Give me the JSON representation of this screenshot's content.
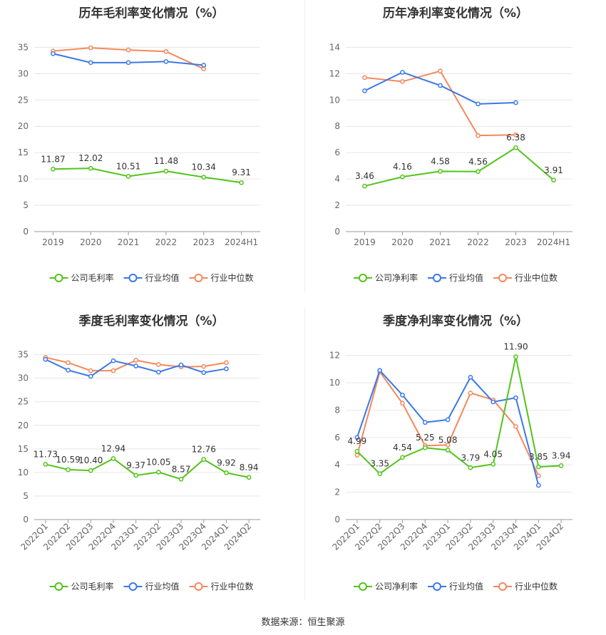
{
  "source": "数据来源：恒生聚源",
  "legend_labels": {
    "company_gross": "公司毛利率",
    "company_net": "公司净利率",
    "industry_avg": "行业均值",
    "industry_median": "行业中位数"
  },
  "colors": {
    "company": "#52c41a",
    "industry_avg": "#3b78e7",
    "industry_median": "#f4885c"
  },
  "chart_data": [
    {
      "id": "annual-gross",
      "type": "line",
      "title": "历年毛利率变化情况（%）",
      "categories": [
        "2019",
        "2020",
        "2021",
        "2022",
        "2023",
        "2024H1"
      ],
      "yticks": [
        0,
        5,
        10,
        15,
        20,
        25,
        30,
        35
      ],
      "ylim": [
        0,
        36
      ],
      "series": [
        {
          "name": "公司毛利率",
          "key": "company",
          "values": [
            11.87,
            12.02,
            10.51,
            11.48,
            10.34,
            9.31
          ],
          "labels": true
        },
        {
          "name": "行业均值",
          "key": "industry_avg",
          "values": [
            33.8,
            32.1,
            32.1,
            32.3,
            31.6,
            null
          ],
          "labels": false
        },
        {
          "name": "行业中位数",
          "key": "industry_median",
          "values": [
            34.3,
            34.9,
            34.5,
            34.2,
            30.9,
            null
          ],
          "labels": false
        }
      ],
      "legend": "bottom"
    },
    {
      "id": "annual-net",
      "type": "line",
      "title": "历年净利率变化情况（%）",
      "categories": [
        "2019",
        "2020",
        "2021",
        "2022",
        "2023",
        "2024H1"
      ],
      "yticks": [
        0,
        2,
        4,
        6,
        8,
        10,
        12,
        14
      ],
      "ylim": [
        0,
        14.4
      ],
      "series": [
        {
          "name": "公司净利率",
          "key": "company",
          "values": [
            3.46,
            4.16,
            4.58,
            4.56,
            6.38,
            3.91
          ],
          "labels": true
        },
        {
          "name": "行业均值",
          "key": "industry_avg",
          "values": [
            10.7,
            12.1,
            11.1,
            9.7,
            9.8,
            null
          ],
          "labels": false
        },
        {
          "name": "行业中位数",
          "key": "industry_median",
          "values": [
            11.7,
            11.4,
            12.2,
            7.3,
            7.35,
            null
          ],
          "labels": false
        }
      ],
      "legend": "bottom"
    },
    {
      "id": "quarterly-gross",
      "type": "line",
      "title": "季度毛利率变化情况（%）",
      "categories": [
        "2022Q1",
        "2022Q2",
        "2022Q3",
        "2022Q4",
        "2023Q1",
        "2023Q2",
        "2023Q3",
        "2023Q4",
        "2024Q1",
        "2024Q2"
      ],
      "yticks": [
        0,
        5,
        10,
        15,
        20,
        25,
        30,
        35
      ],
      "ylim": [
        0,
        36
      ],
      "rotate_labels": true,
      "series": [
        {
          "name": "公司毛利率",
          "key": "company",
          "values": [
            11.73,
            10.59,
            10.4,
            12.94,
            9.37,
            10.05,
            8.57,
            12.76,
            9.92,
            8.94
          ],
          "labels": true
        },
        {
          "name": "行业均值",
          "key": "industry_avg",
          "values": [
            34.0,
            31.7,
            30.4,
            33.7,
            32.6,
            31.3,
            32.8,
            31.2,
            32.0,
            null
          ],
          "labels": false
        },
        {
          "name": "行业中位数",
          "key": "industry_median",
          "values": [
            34.4,
            33.3,
            31.6,
            31.6,
            33.8,
            32.9,
            32.4,
            32.5,
            33.3,
            null
          ],
          "labels": false
        }
      ],
      "legend": "bottom"
    },
    {
      "id": "quarterly-net",
      "type": "line",
      "title": "季度净利率变化情况（%）",
      "categories": [
        "2022Q1",
        "2022Q2",
        "2022Q3",
        "2022Q4",
        "2023Q1",
        "2023Q2",
        "2023Q3",
        "2023Q4",
        "2024Q1",
        "2024Q2"
      ],
      "yticks": [
        0,
        2,
        4,
        6,
        8,
        10,
        12
      ],
      "ylim": [
        0,
        12.4
      ],
      "rotate_labels": true,
      "series": [
        {
          "name": "公司净利率",
          "key": "company",
          "values": [
            4.99,
            3.35,
            4.54,
            5.25,
            5.08,
            3.79,
            4.05,
            11.9,
            3.85,
            3.94
          ],
          "labels": true
        },
        {
          "name": "行业均值",
          "key": "industry_avg",
          "values": [
            6.0,
            10.9,
            9.1,
            7.1,
            7.3,
            10.4,
            8.6,
            8.9,
            2.5,
            null
          ],
          "labels": false
        },
        {
          "name": "行业中位数",
          "key": "industry_median",
          "values": [
            4.7,
            10.8,
            8.5,
            5.4,
            5.45,
            9.25,
            8.75,
            6.8,
            3.2,
            null
          ],
          "labels": false
        }
      ],
      "legend": "bottom"
    }
  ]
}
